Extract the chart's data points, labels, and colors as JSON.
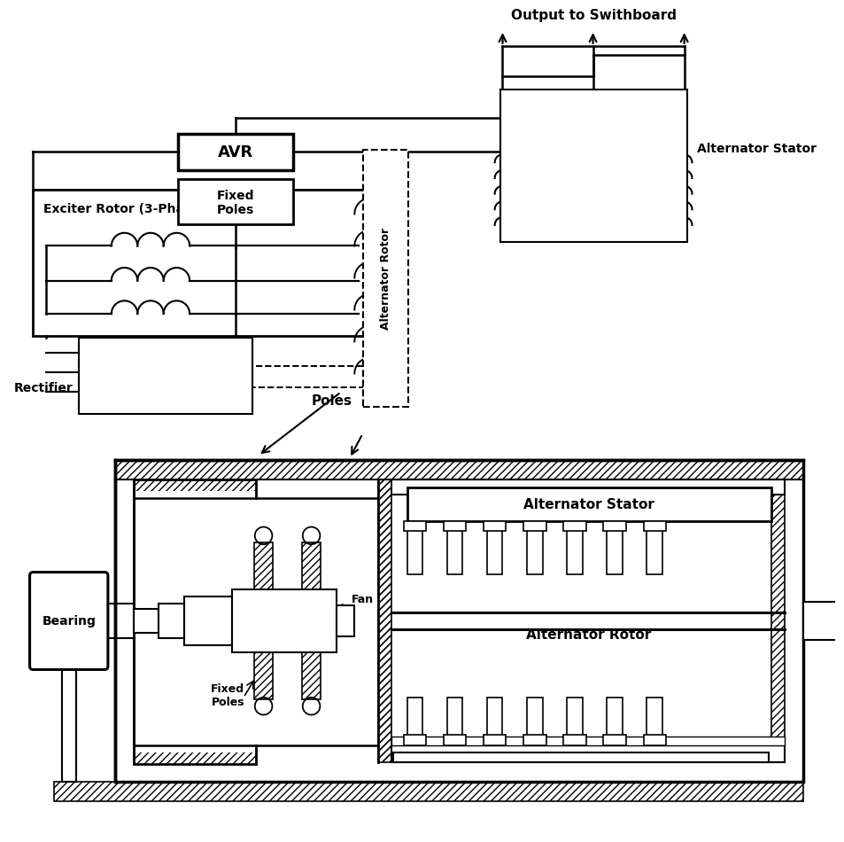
{
  "bg": "#ffffff",
  "lc": "#000000",
  "fig_w": 9.51,
  "fig_h": 9.46,
  "dpi": 100,
  "labels": {
    "output": "Output to Swithboard",
    "avr": "AVR",
    "fixed_poles": "Fixed\nPoles",
    "exciter_rotor": "Exciter Rotor (3-Phase)",
    "rectifier": "Rectifier",
    "alt_rotor_vert": "Alternator Rotor",
    "alt_stator_top": "Alternator Stator",
    "poles": "Poles",
    "bearing": "Bearing",
    "fan": "Fan",
    "fixed_poles_bot": "Fixed\nPoles",
    "alt_stator_bot": "Alternator Stator",
    "alt_rotor_bot": "Alternator Rotor"
  }
}
